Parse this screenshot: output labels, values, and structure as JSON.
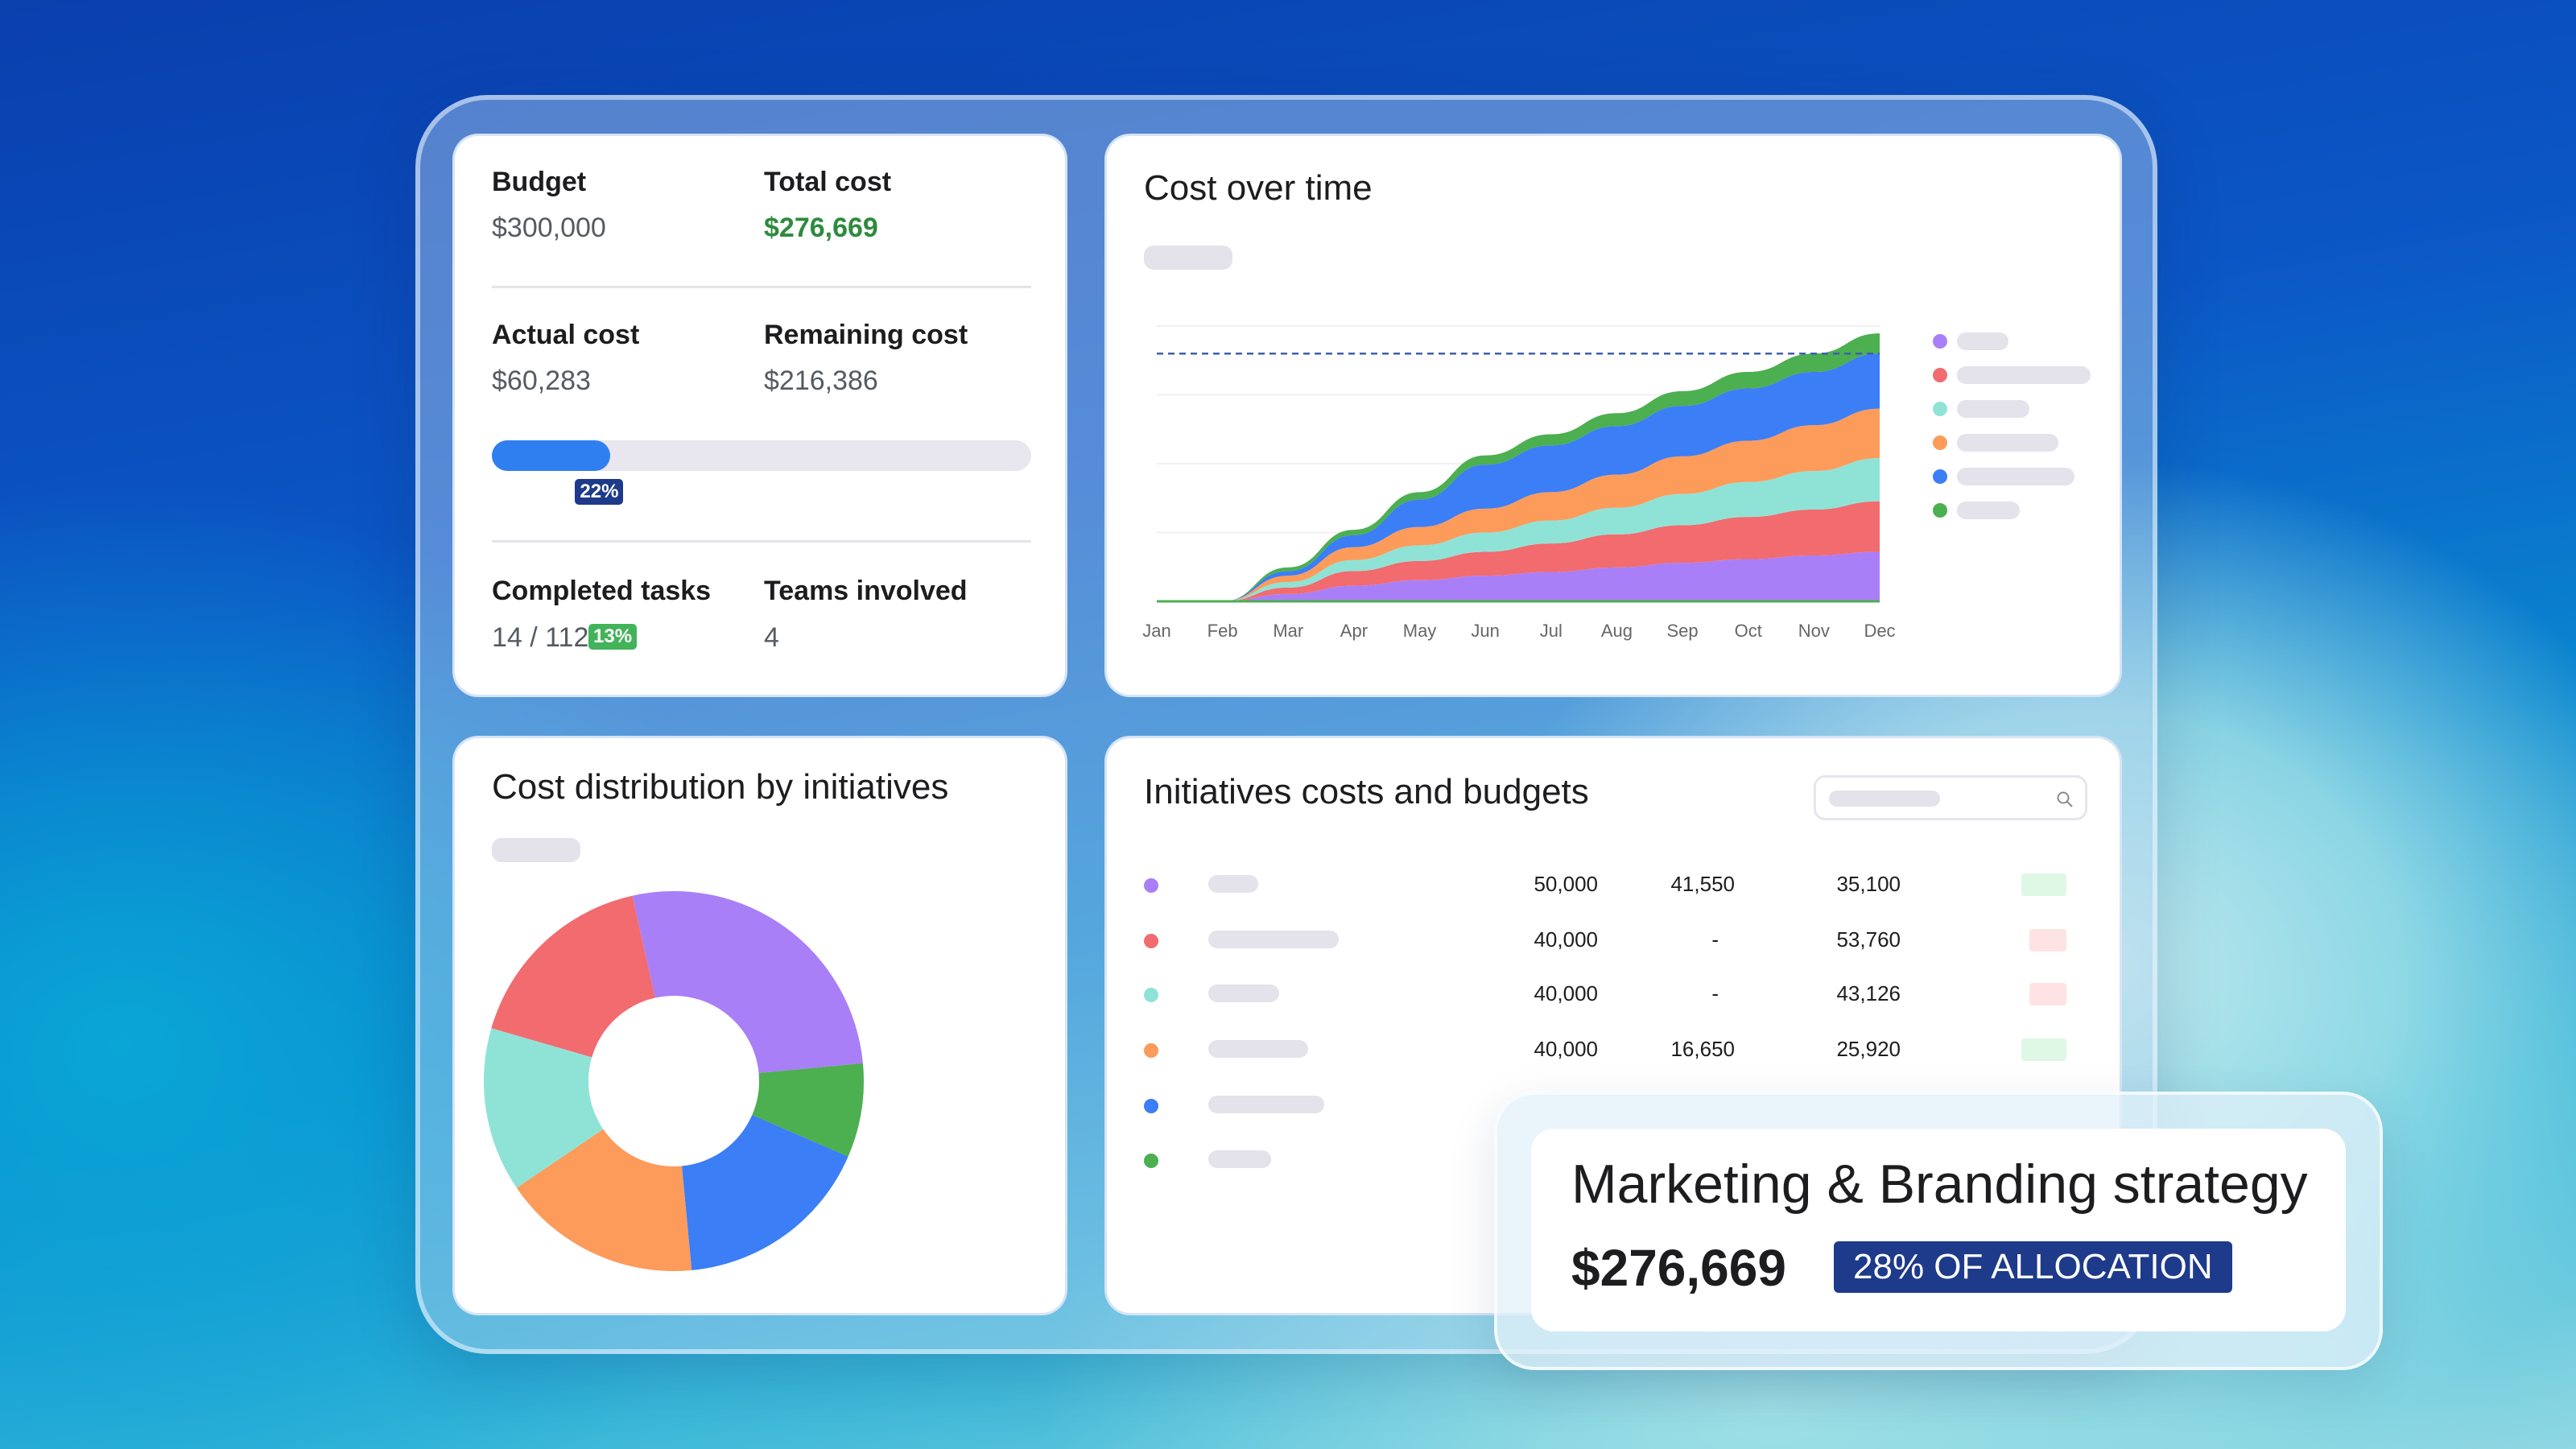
{
  "kpi": {
    "budget_label": "Budget",
    "budget_value": "$300,000",
    "total_cost_label": "Total cost",
    "total_cost_value": "$276,669",
    "actual_cost_label": "Actual cost",
    "actual_cost_value": "$60,283",
    "remaining_cost_label": "Remaining cost",
    "remaining_cost_value": "$216,386",
    "progress_percent": 22,
    "progress_label": "22%",
    "completed_tasks_label": "Completed tasks",
    "completed_tasks_value": "14 / 112",
    "completed_badge": "13%",
    "teams_label": "Teams involved",
    "teams_value": "4"
  },
  "colors": {
    "purple": "#a97ff7",
    "red": "#f26b6f",
    "teal": "#8fe3d6",
    "orange": "#fd9b5b",
    "blue": "#3b7ef6",
    "green": "#4caf50",
    "green_text": "#2e8b3d",
    "progress_blue": "#2f7ff0",
    "navy": "#1e3a8a"
  },
  "cost_over_time": {
    "title": "Cost over time",
    "chart_data": {
      "type": "area",
      "stacked": true,
      "categories": [
        "Jan",
        "Feb",
        "Mar",
        "Apr",
        "May",
        "Jun",
        "Jul",
        "Aug",
        "Sep",
        "Oct",
        "Nov",
        "Dec"
      ],
      "series": [
        {
          "color": "#a97ff7",
          "values": [
            0,
            0,
            8,
            17,
            23,
            28,
            32,
            37,
            42,
            46,
            50,
            54
          ]
        },
        {
          "color": "#f26b6f",
          "values": [
            0,
            0,
            7,
            16,
            21,
            26,
            31,
            36,
            41,
            46,
            50,
            55
          ]
        },
        {
          "color": "#8fe3d6",
          "values": [
            0,
            0,
            6,
            12,
            17,
            21,
            25,
            29,
            34,
            38,
            42,
            47
          ]
        },
        {
          "color": "#fd9b5b",
          "values": [
            0,
            0,
            7,
            14,
            20,
            26,
            31,
            36,
            41,
            45,
            50,
            54
          ]
        },
        {
          "color": "#3b7ef6",
          "values": [
            0,
            0,
            5,
            13,
            30,
            48,
            51,
            53,
            55,
            57,
            58,
            60
          ]
        },
        {
          "color": "#4caf50",
          "values": [
            0,
            0,
            4,
            6,
            8,
            10,
            12,
            14,
            16,
            18,
            20,
            22
          ]
        }
      ],
      "target_line": 270,
      "ylim": [
        0,
        300
      ],
      "grid": true,
      "legend": "right"
    }
  },
  "cost_distribution": {
    "title": "Cost distribution by initiatives",
    "chart_data": {
      "type": "pie",
      "donut": true,
      "slices": [
        {
          "color": "#a97ff7",
          "value": 27
        },
        {
          "color": "#4caf50",
          "value": 8
        },
        {
          "color": "#3b7ef6",
          "value": 17
        },
        {
          "color": "#fd9b5b",
          "value": 17
        },
        {
          "color": "#8fe3d6",
          "value": 14
        },
        {
          "color": "#f26b6f",
          "value": 17
        }
      ]
    }
  },
  "initiatives": {
    "title": "Initiatives costs and budgets",
    "rows": [
      {
        "color": "#a97ff7",
        "budget": "50,000",
        "actual": "41,550",
        "remaining": "35,100",
        "status": "#dff7e5"
      },
      {
        "color": "#f26b6f",
        "budget": "40,000",
        "actual": "-",
        "remaining": "53,760",
        "status": "#fde3e3"
      },
      {
        "color": "#8fe3d6",
        "budget": "40,000",
        "actual": "-",
        "remaining": "43,126",
        "status": "#fde3e3"
      },
      {
        "color": "#fd9b5b",
        "budget": "40,000",
        "actual": "16,650",
        "remaining": "25,920",
        "status": "#dff7e5"
      },
      {
        "color": "#3b7ef6",
        "budget": "",
        "actual": "",
        "remaining": "",
        "status": ""
      },
      {
        "color": "#4caf50",
        "budget": "",
        "actual": "",
        "remaining": "",
        "status": ""
      }
    ]
  },
  "tooltip": {
    "title": "Marketing & Branding strategy",
    "value": "$276,669",
    "badge": "28% OF ALLOCATION"
  }
}
